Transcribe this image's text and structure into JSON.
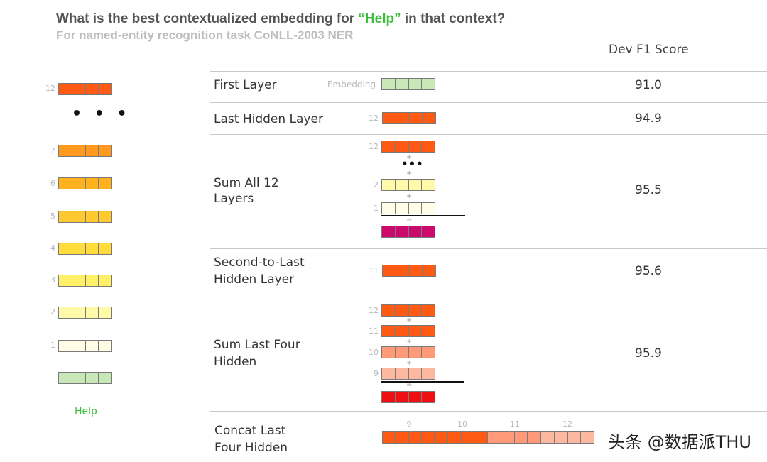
{
  "header": {
    "title_before": "What is the best contextualized embedding for ",
    "title_quote_open": "“",
    "title_highlight": "Help",
    "title_quote_close": "”",
    "title_after": " in that context?",
    "subtitle": "For named-entity recognition task CoNLL-2003 NER",
    "column_header": "Dev F1 Score"
  },
  "colors": {
    "layer12": "#ff5a14",
    "layer7": "#ff9a1e",
    "layer6": "#ffb21e",
    "layer5": "#ffc830",
    "layer4": "#ffdc3c",
    "layer3": "#fff068",
    "layer2": "#fffaaa",
    "layer1": "#fffde6",
    "embedding": "#c9e8b8",
    "sum_all": "#cc0a6e",
    "sum_four": "#ee1010",
    "layer10": "#ff9a78",
    "layer9": "#ffb8a0",
    "highlight_word": "#3bbf3b"
  },
  "left_stack": {
    "labels": [
      "12",
      "7",
      "6",
      "5",
      "4",
      "3",
      "2",
      "1"
    ],
    "ellipsis": "• • •",
    "word": "Help"
  },
  "rows": [
    {
      "label": "First Layer",
      "vector_label": "Embedding",
      "score": "91.0"
    },
    {
      "label": "Last Hidden Layer",
      "vector_label": "12",
      "score": "94.9"
    },
    {
      "label_line1": "Sum All 12",
      "label_line2": "Layers",
      "labels": [
        "12",
        "2",
        "1"
      ],
      "plus": "+",
      "ellipsis": "•••",
      "equals": "=",
      "score": "95.5"
    },
    {
      "label_line1": "Second-to-Last",
      "label_line2": "Hidden Layer",
      "vector_label": "11",
      "score": "95.6"
    },
    {
      "label_line1": "Sum Last Four",
      "label_line2": "Hidden",
      "labels": [
        "12",
        "11",
        "10",
        "9"
      ],
      "plus": "+",
      "equals": "=",
      "score": "95.9"
    },
    {
      "label_line1": "Concat Last",
      "label_line2": "Four Hidden",
      "labels": [
        "9",
        "10",
        "11",
        "12"
      ],
      "score": ""
    }
  ],
  "watermark": "头条 @数据派THU"
}
